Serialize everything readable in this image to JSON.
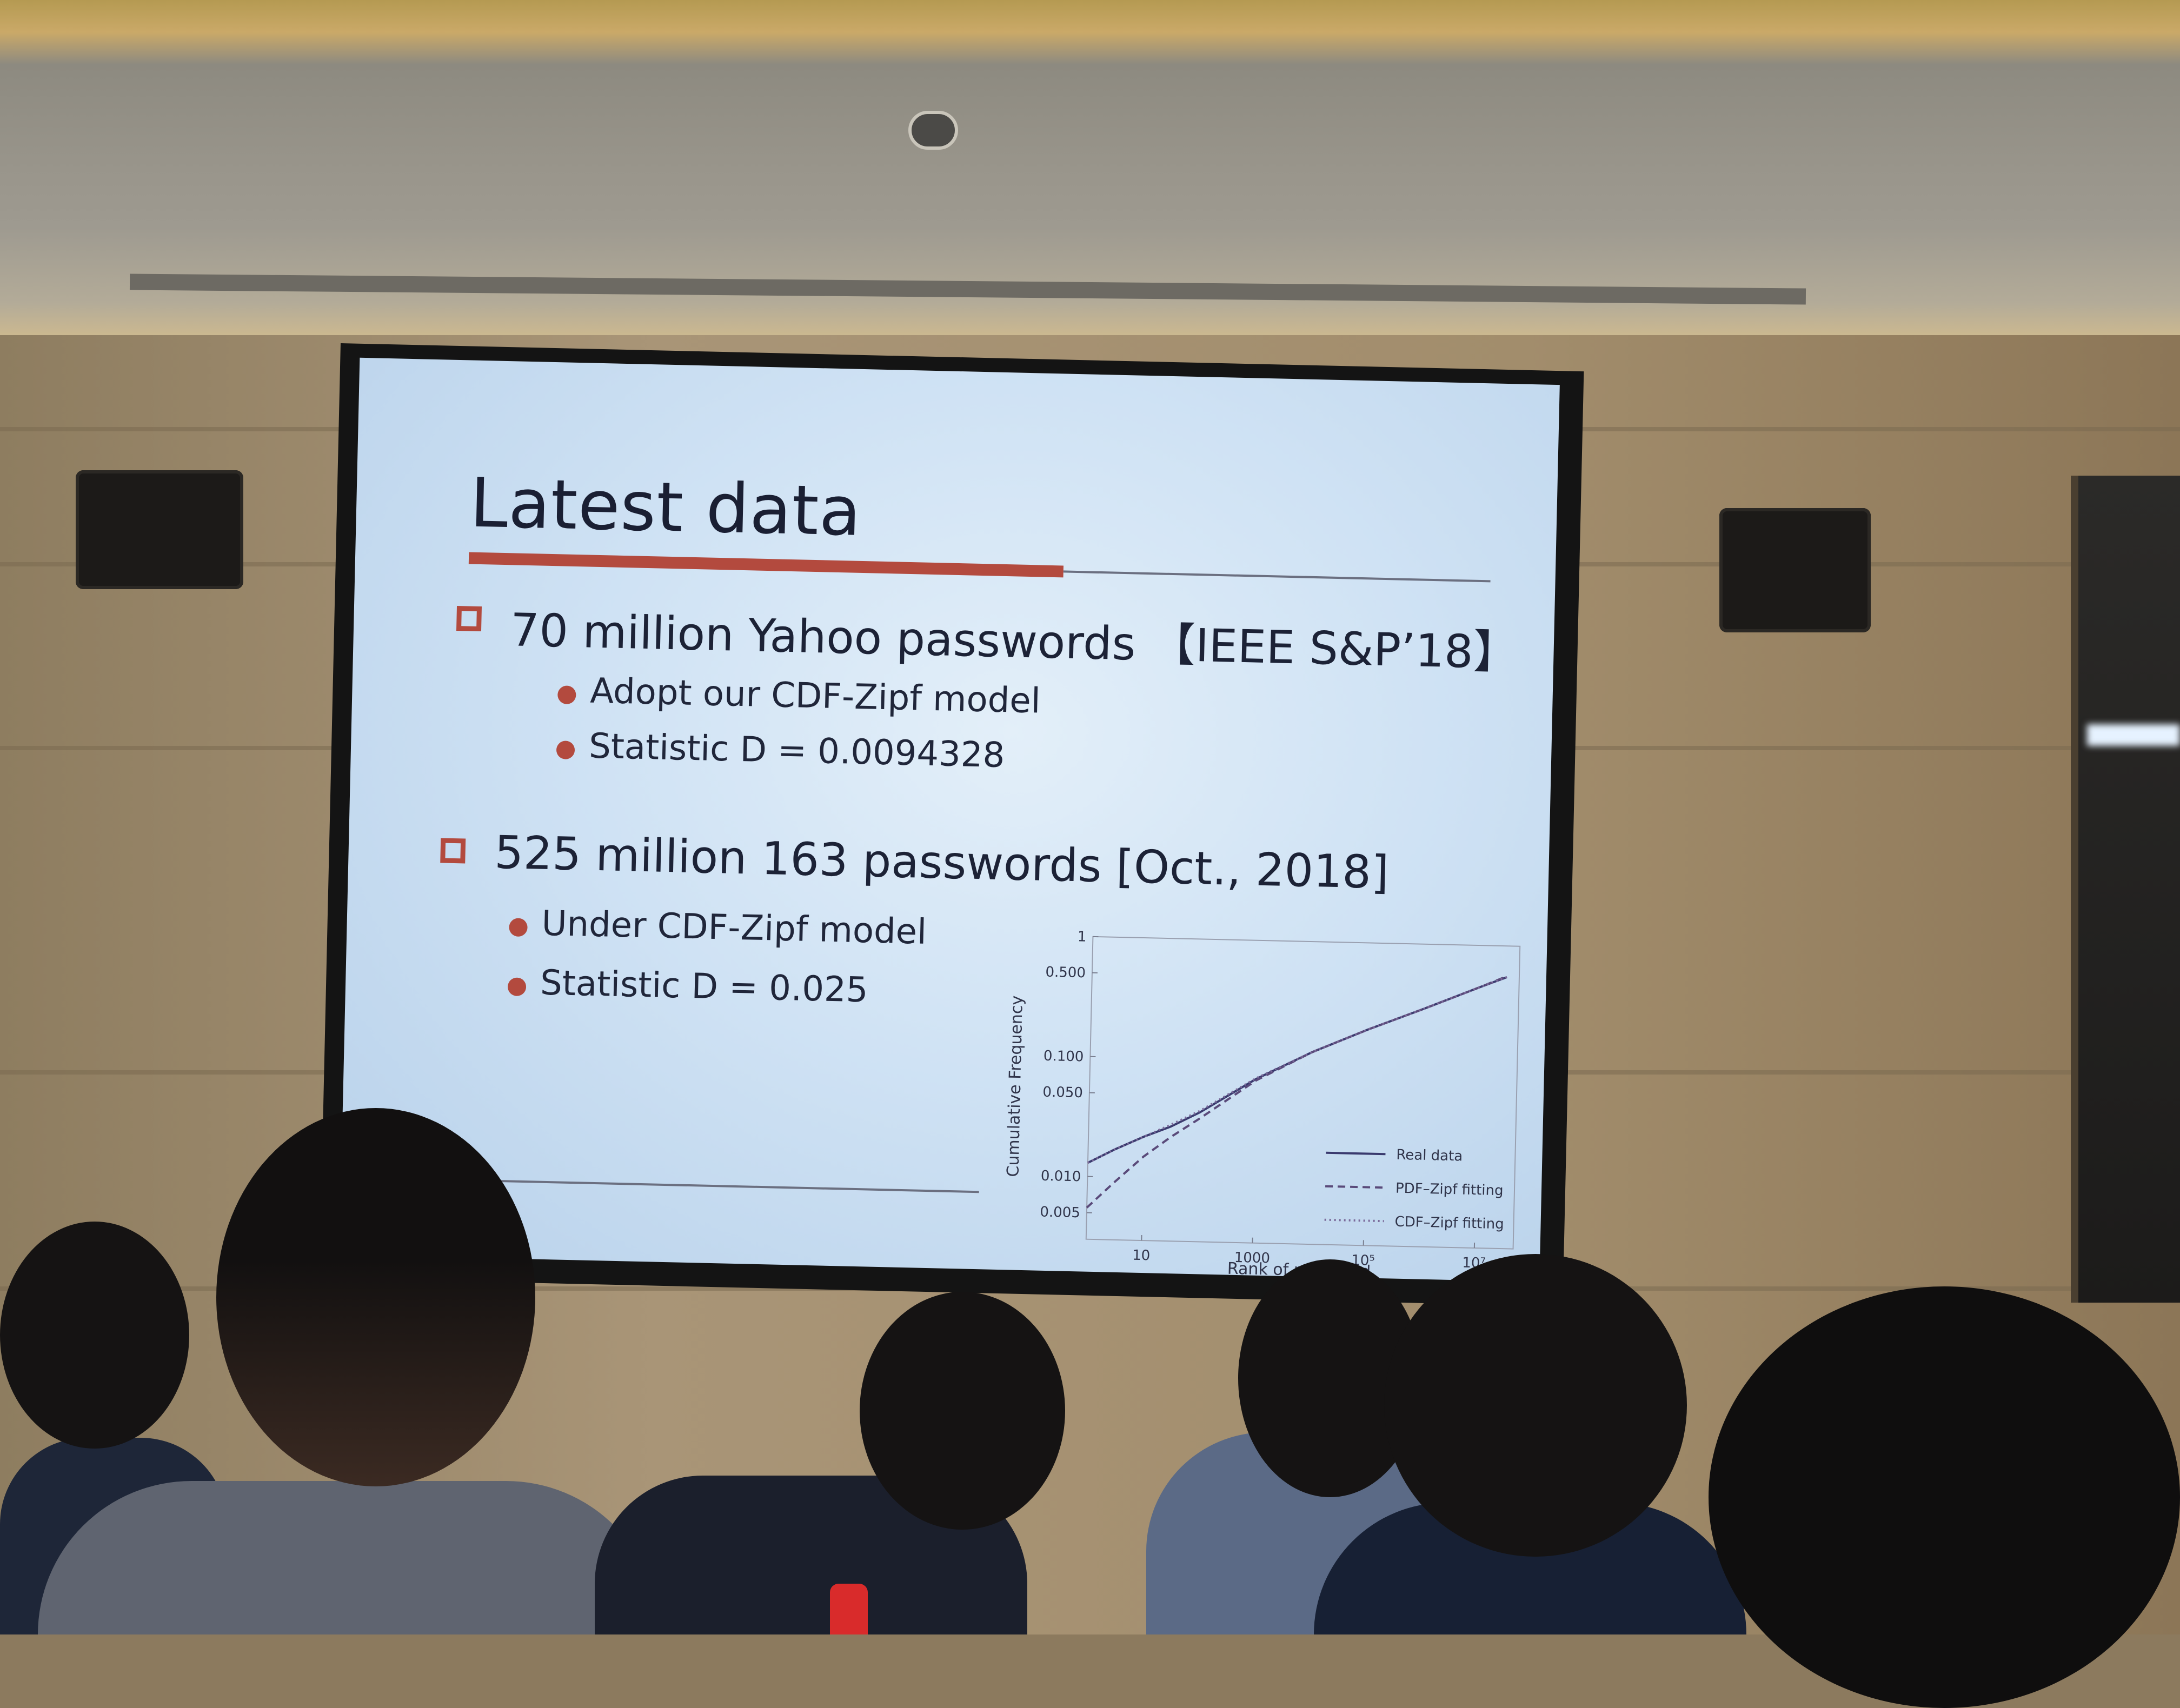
{
  "slide": {
    "title": "Latest data",
    "sections": [
      {
        "heading": "70 million Yahoo passwords 【IEEE S&P’18】",
        "items": [
          "Adopt our CDF-Zipf model",
          "Statistic  D = 0.0094328"
        ]
      },
      {
        "heading": "525 million 163 passwords [Oct., 2018]",
        "items": [
          "Under CDF-Zipf model",
          "Statistic  D = 0.025"
        ]
      }
    ]
  },
  "chart_data": {
    "type": "line",
    "title": "",
    "xlabel": "Rank of password",
    "ylabel": "Cumulative Frequency",
    "x_scale": "log",
    "y_scale": "log",
    "xlim": [
      1,
      50000000
    ],
    "ylim": [
      0.003,
      1
    ],
    "x_ticks": [
      "10",
      "1000",
      "10⁵",
      "10⁷"
    ],
    "x_tick_values": [
      10,
      1000,
      100000,
      10000000
    ],
    "y_ticks": [
      "1",
      "0.500",
      "0.100",
      "0.050",
      "0.010",
      "0.005"
    ],
    "y_tick_values": [
      1,
      0.5,
      0.1,
      0.05,
      0.01,
      0.005
    ],
    "legend_position": "bottom-right",
    "series": [
      {
        "name": "Real data",
        "style": "solid",
        "color": "#3a3a6e",
        "x": [
          1,
          3,
          10,
          30,
          100,
          1000,
          10000,
          100000,
          1000000,
          10000000,
          30000000
        ],
        "y": [
          0.013,
          0.017,
          0.022,
          0.027,
          0.036,
          0.07,
          0.12,
          0.19,
          0.29,
          0.45,
          0.55
        ]
      },
      {
        "name": "PDF–Zipf fitting",
        "style": "dashed",
        "color": "#5a4a7a",
        "x": [
          1,
          3,
          10,
          30,
          100,
          1000,
          10000,
          100000,
          1000000,
          10000000,
          30000000
        ],
        "y": [
          0.0055,
          0.009,
          0.015,
          0.022,
          0.032,
          0.068,
          0.12,
          0.19,
          0.29,
          0.45,
          0.56
        ]
      },
      {
        "name": "CDF–Zipf fitting",
        "style": "dotted",
        "color": "#7a6a9a",
        "x": [
          1,
          3,
          10,
          30,
          100,
          1000,
          10000,
          100000,
          1000000,
          10000000,
          30000000
        ],
        "y": [
          0.013,
          0.017,
          0.022,
          0.028,
          0.037,
          0.071,
          0.12,
          0.19,
          0.29,
          0.45,
          0.55
        ]
      }
    ]
  }
}
